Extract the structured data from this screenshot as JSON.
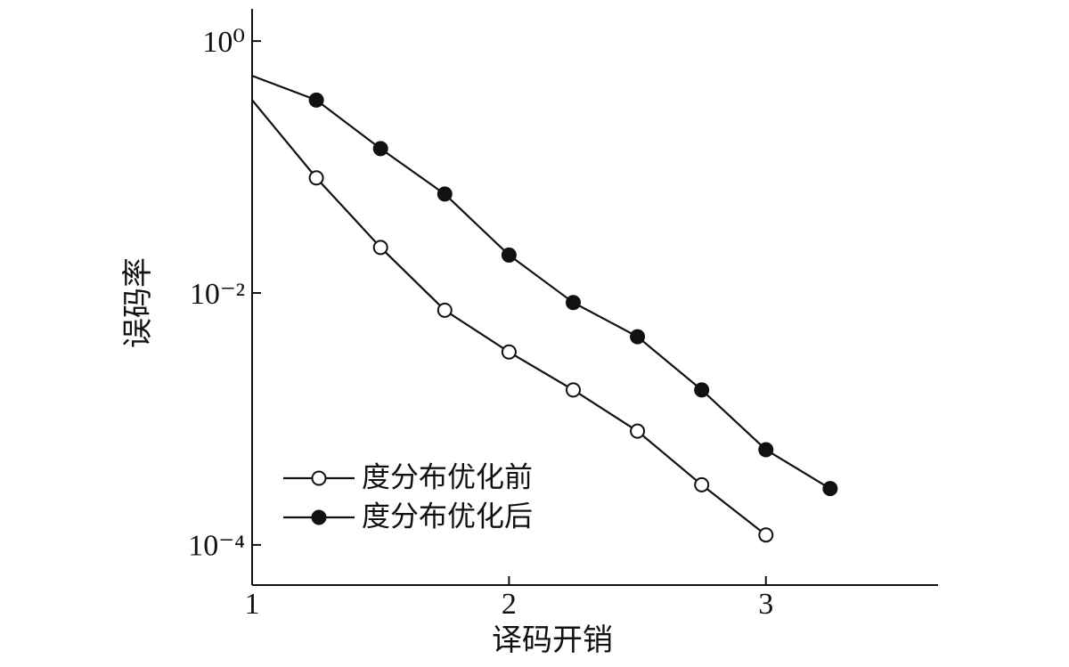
{
  "chart_data": {
    "type": "line",
    "x_label": "译码开销",
    "y_label": "误码率",
    "log_y": true,
    "xlim": [
      1,
      3.67
    ],
    "ylim": [
      4.8e-05,
      1.8
    ],
    "xticks": [
      1,
      2,
      3
    ],
    "yticks": [
      {
        "value": 1,
        "label": "10⁰"
      },
      {
        "value": 0.01,
        "label": "10⁻²"
      },
      {
        "value": 0.0001,
        "label": "10⁻⁴"
      }
    ],
    "grid": false,
    "legend": "lower left",
    "series": [
      {
        "name": "度分布优化前",
        "color": "#111111",
        "marker": "open",
        "x": [
          1,
          1.25,
          1.5,
          1.75,
          2,
          2.25,
          2.5,
          2.75,
          3
        ],
        "values": [
          0.34,
          0.082,
          0.023,
          0.0073,
          0.0034,
          0.0017,
          0.0008,
          0.0003,
          0.00012
        ]
      },
      {
        "name": "度分布优化后",
        "color": "#111111",
        "marker": "filled",
        "x": [
          1,
          1.25,
          1.5,
          1.75,
          2,
          2.25,
          2.5,
          2.75,
          3,
          3.25
        ],
        "values": [
          0.53,
          0.34,
          0.14,
          0.061,
          0.02,
          0.0084,
          0.0045,
          0.0017,
          0.00057,
          0.00028
        ]
      }
    ]
  }
}
